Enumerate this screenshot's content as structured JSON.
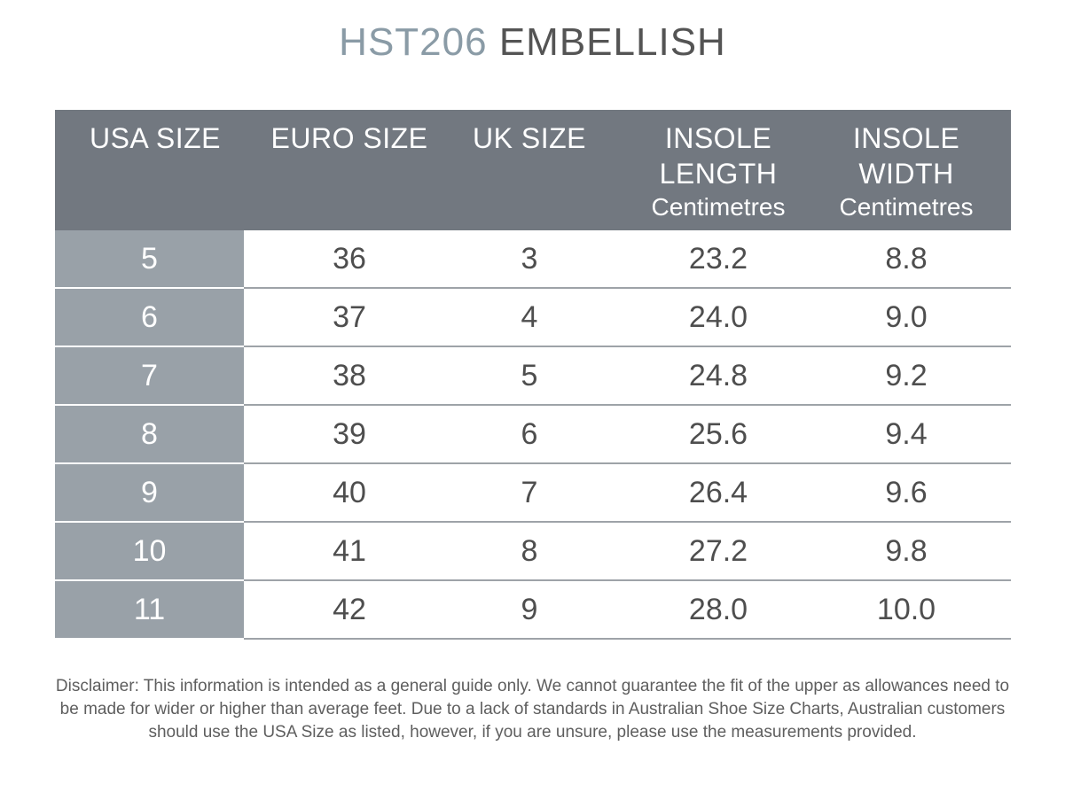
{
  "title": {
    "code": "HST206",
    "name": "EMBELLISH"
  },
  "table": {
    "headers": {
      "usa": "USA SIZE",
      "euro": "EURO SIZE",
      "uk": "UK SIZE",
      "length": "INSOLE LENGTH",
      "length_unit": "Centimetres",
      "width": "INSOLE WIDTH",
      "width_unit": "Centimetres"
    },
    "rows": [
      {
        "usa": "5",
        "euro": "36",
        "uk": "3",
        "length": "23.2",
        "width": "8.8"
      },
      {
        "usa": "6",
        "euro": "37",
        "uk": "4",
        "length": "24.0",
        "width": "9.0"
      },
      {
        "usa": "7",
        "euro": "38",
        "uk": "5",
        "length": "24.8",
        "width": "9.2"
      },
      {
        "usa": "8",
        "euro": "39",
        "uk": "6",
        "length": "25.6",
        "width": "9.4"
      },
      {
        "usa": "9",
        "euro": "40",
        "uk": "7",
        "length": "26.4",
        "width": "9.6"
      },
      {
        "usa": "10",
        "euro": "41",
        "uk": "8",
        "length": "27.2",
        "width": "9.8"
      },
      {
        "usa": "11",
        "euro": "42",
        "uk": "9",
        "length": "28.0",
        "width": "10.0"
      }
    ]
  },
  "disclaimer": "Disclaimer: This information is intended as a general guide only. We cannot guarantee the fit of the upper as allowances need to be made for wider or higher than average feet. Due to a lack of standards in Australian Shoe Size Charts, Australian customers should use the USA Size as listed, however, if you are unsure, please use the measurements provided.",
  "colors": {
    "header_bg": "#727880",
    "usa_column_bg": "#99a1a8",
    "title_code": "#8a9ba6",
    "title_name": "#545454"
  }
}
